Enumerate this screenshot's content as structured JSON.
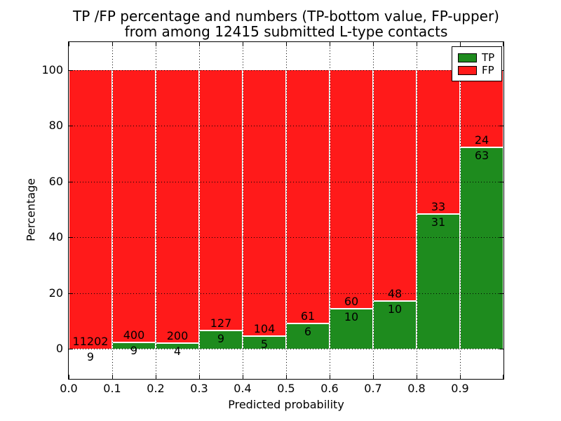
{
  "chart_data": {
    "type": "bar",
    "stacked": true,
    "title_line1": "TP /FP percentage and numbers (TP-bottom value, FP-upper)",
    "title_line2": "from among 12415 submitted L-type contacts",
    "xlabel": "Predicted probability",
    "ylabel": "Percentage",
    "total_submitted": 12415,
    "xlim": [
      0.0,
      1.0
    ],
    "ylim": [
      -10.8,
      110.1
    ],
    "x_ticks": [
      "0.0",
      "0.1",
      "0.2",
      "0.3",
      "0.4",
      "0.5",
      "0.6",
      "0.7",
      "0.8",
      "0.9"
    ],
    "y_ticks": [
      0,
      20,
      40,
      60,
      80,
      100
    ],
    "grid": "dotted",
    "legend": {
      "position": "upper right",
      "entries": [
        {
          "label": "TP",
          "color": "#1e8b1e"
        },
        {
          "label": "FP",
          "color": "#ff1a1a"
        }
      ]
    },
    "bins": [
      {
        "x_range": [
          0.0,
          0.1
        ],
        "tp": 9,
        "fp": 11202
      },
      {
        "x_range": [
          0.1,
          0.2
        ],
        "tp": 9,
        "fp": 400
      },
      {
        "x_range": [
          0.2,
          0.3
        ],
        "tp": 4,
        "fp": 200
      },
      {
        "x_range": [
          0.3,
          0.4
        ],
        "tp": 9,
        "fp": 127
      },
      {
        "x_range": [
          0.4,
          0.5
        ],
        "tp": 5,
        "fp": 104
      },
      {
        "x_range": [
          0.5,
          0.6
        ],
        "tp": 6,
        "fp": 61
      },
      {
        "x_range": [
          0.6,
          0.7
        ],
        "tp": 10,
        "fp": 60
      },
      {
        "x_range": [
          0.7,
          0.8
        ],
        "tp": 10,
        "fp": 48
      },
      {
        "x_range": [
          0.8,
          0.9
        ],
        "tp": 31,
        "fp": 33
      },
      {
        "x_range": [
          0.9,
          1.0
        ],
        "tp": 63,
        "fp": 24
      }
    ]
  },
  "colors": {
    "tp_green": "#1e8b1e",
    "fp_red": "#ff1a1a",
    "axis": "#000000",
    "background": "#ffffff"
  }
}
